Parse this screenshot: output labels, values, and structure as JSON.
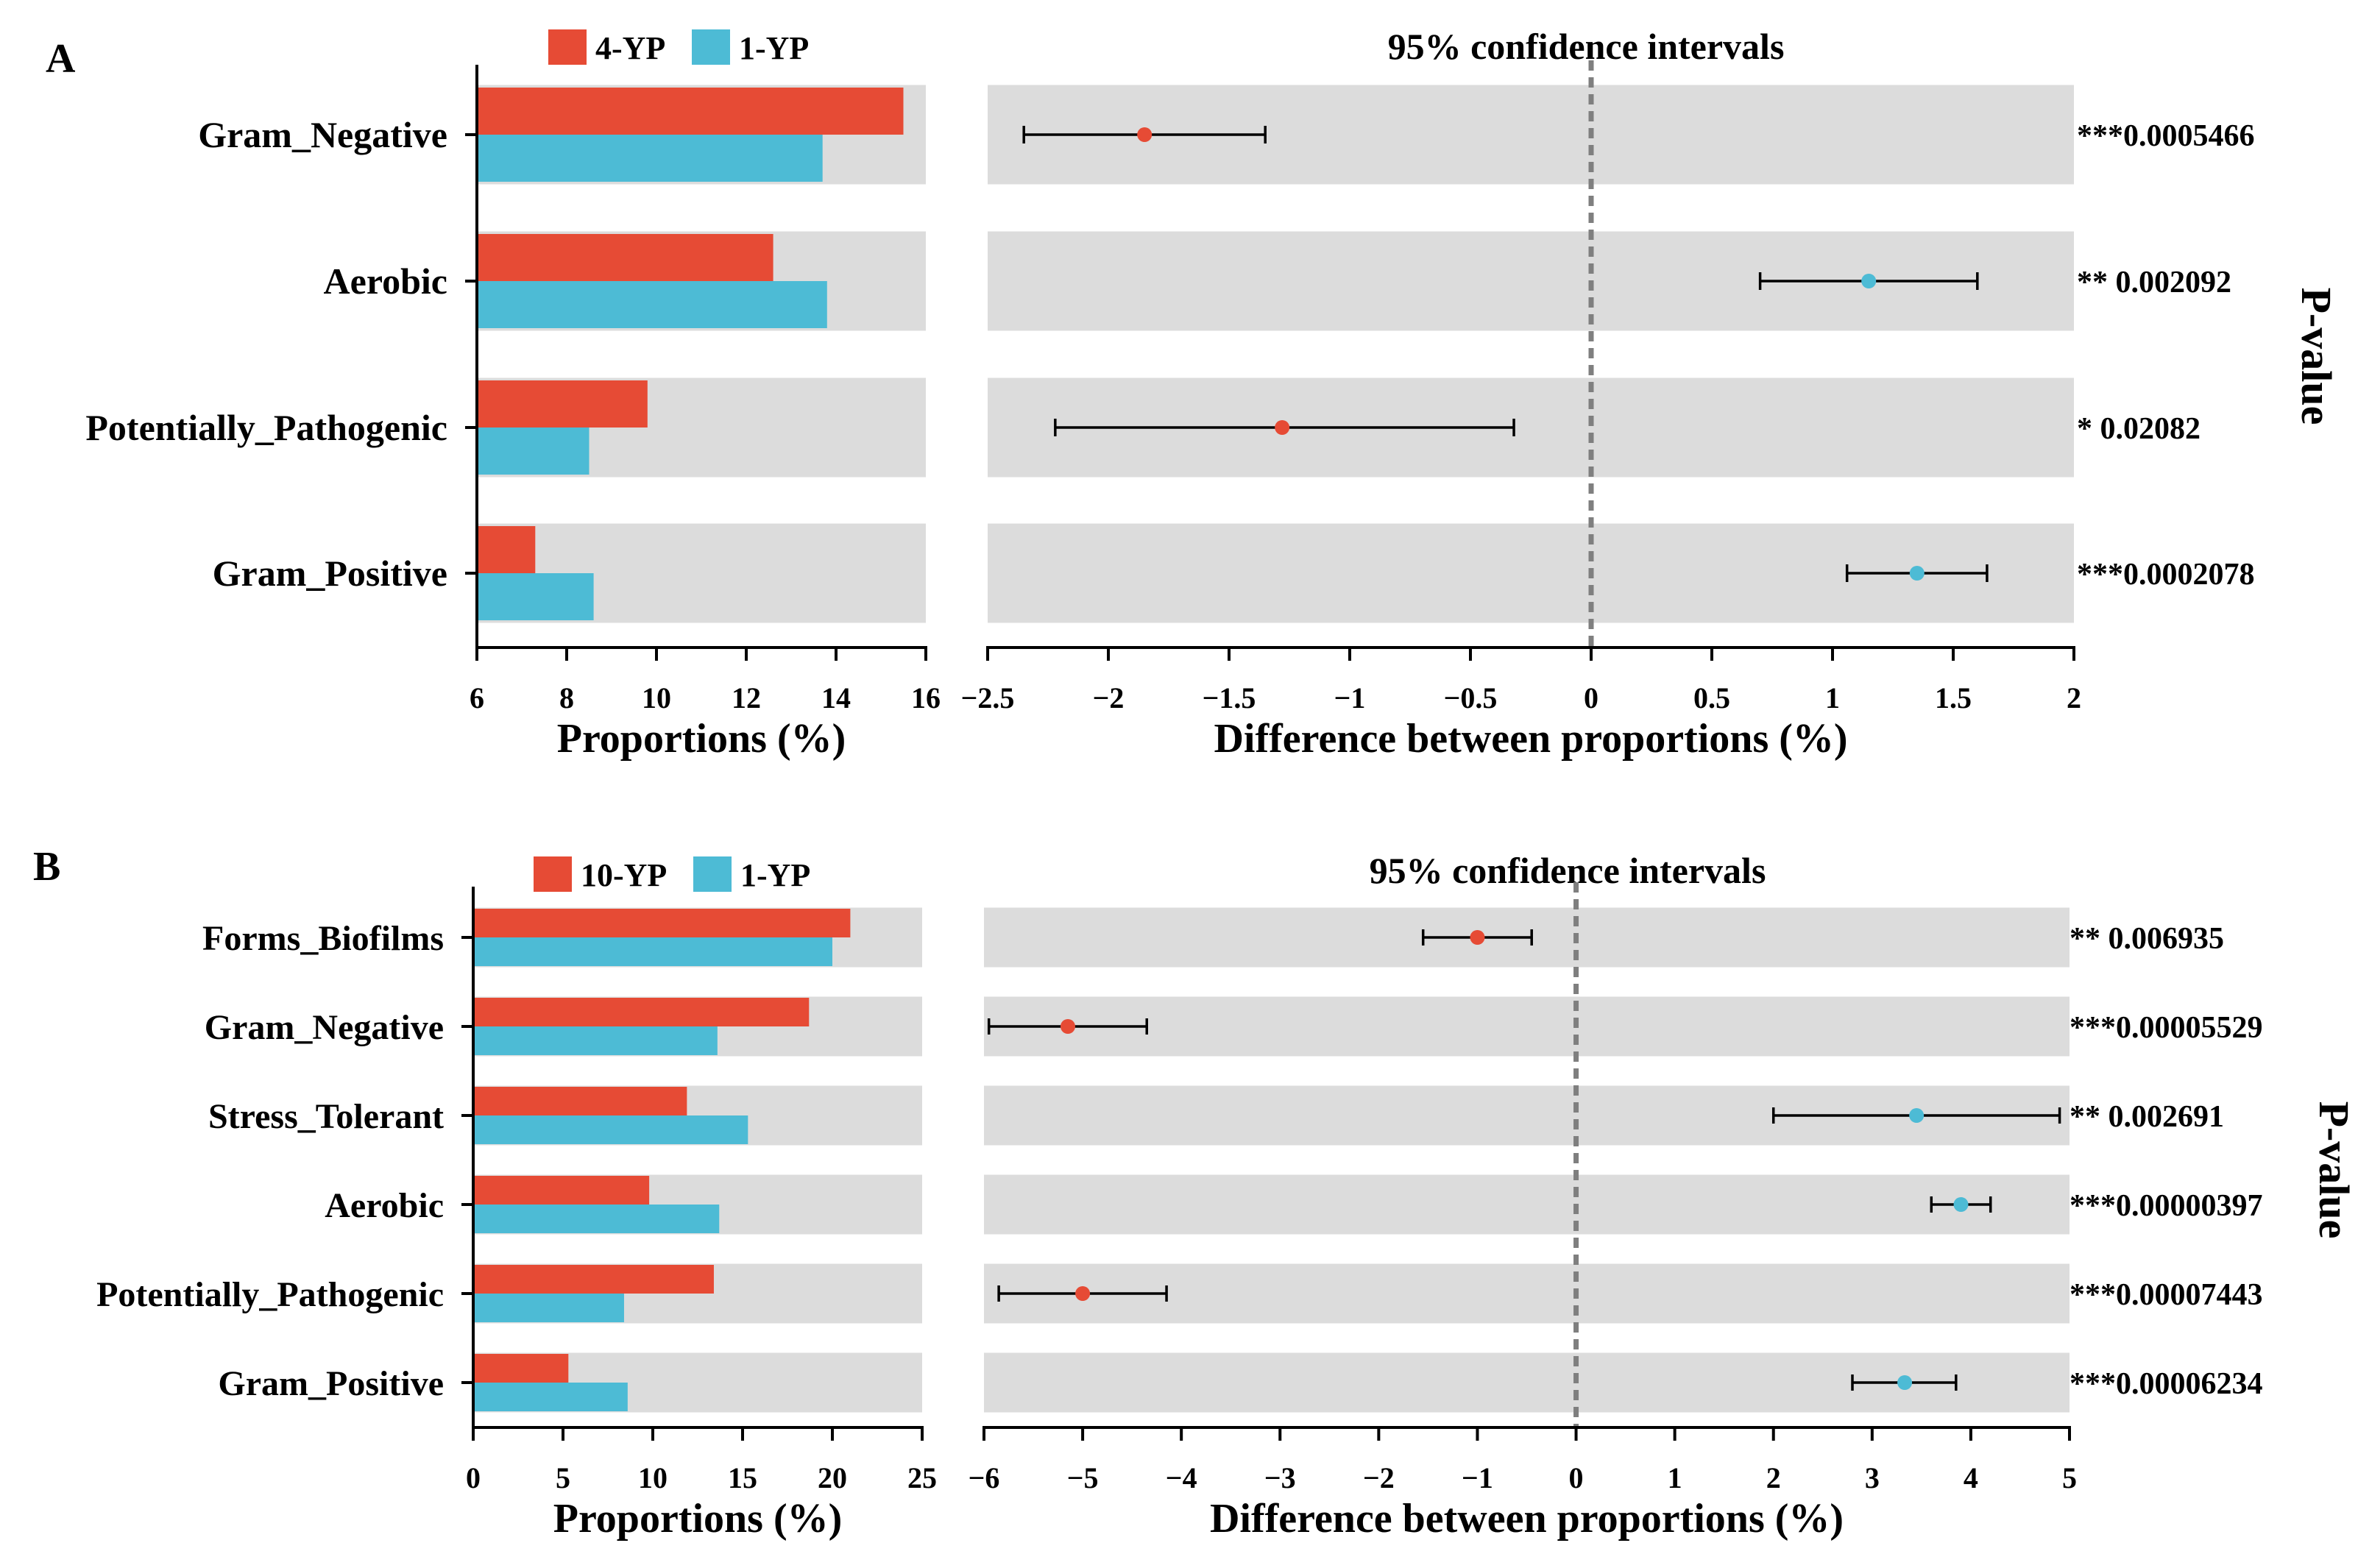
{
  "colors": {
    "group_a": "#e64b35",
    "group_b": "#4dbbd5",
    "panel_bg": "#dcdcdc",
    "zero_line": "#7f7f7f"
  },
  "chart_data": [
    {
      "panel_label": "A",
      "type": "bar",
      "legend": [
        "4-YP",
        "1-YP"
      ],
      "categories": [
        "Gram_Negative",
        "Aerobic",
        "Potentially_Pathogenic",
        "Gram_Positive"
      ],
      "series": [
        {
          "name": "4-YP",
          "values": [
            15.5,
            12.6,
            9.8,
            7.3
          ]
        },
        {
          "name": "1-YP",
          "values": [
            13.7,
            13.8,
            8.5,
            8.6
          ]
        }
      ],
      "bar_xlim": [
        6,
        16
      ],
      "bar_ticks": [
        "6",
        "8",
        "10",
        "12",
        "14",
        "16"
      ],
      "bar_xlabel": "Proportions (%)",
      "ci_title": "95% confidence intervals",
      "ci_xlim": [
        -2.5,
        2
      ],
      "ci_ticks": [
        "−2.5",
        "−2",
        "−1.5",
        "−1",
        "−0.5",
        "0",
        "0.5",
        "1",
        "1.5",
        "2"
      ],
      "ci_xlabel": "Difference between proportions (%)",
      "differences": [
        {
          "estimate": -1.85,
          "low": -2.35,
          "high": -1.35,
          "favors": "4-YP"
        },
        {
          "estimate": 1.15,
          "low": 0.7,
          "high": 1.6,
          "favors": "1-YP"
        },
        {
          "estimate": -1.28,
          "low": -2.22,
          "high": -0.32,
          "favors": "4-YP"
        },
        {
          "estimate": 1.35,
          "low": 1.06,
          "high": 1.64,
          "favors": "1-YP"
        }
      ],
      "pvalues": [
        "***0.0005466",
        "**  0.002092",
        "*   0.02082",
        "***0.0002078"
      ],
      "pvalue_title": "P-value"
    },
    {
      "panel_label": "B",
      "type": "bar",
      "legend": [
        "10-YP",
        "1-YP"
      ],
      "categories": [
        "Forms_Biofilms",
        "Gram_Negative",
        "Stress_Tolerant",
        "Aerobic",
        "Potentially_Pathogenic",
        "Gram_Positive"
      ],
      "series": [
        {
          "name": "10-YP",
          "values": [
            21.0,
            18.7,
            11.9,
            9.8,
            13.4,
            5.3
          ]
        },
        {
          "name": "1-YP",
          "values": [
            20.0,
            13.6,
            15.3,
            13.7,
            8.4,
            8.6
          ]
        }
      ],
      "bar_xlim": [
        0,
        25
      ],
      "bar_ticks": [
        "0",
        "5",
        "10",
        "15",
        "20",
        "25"
      ],
      "bar_xlabel": "Proportions (%)",
      "ci_title": "95% confidence intervals",
      "ci_xlim": [
        -6,
        5
      ],
      "ci_ticks": [
        "−6",
        "−5",
        "−4",
        "−3",
        "−2",
        "−1",
        "0",
        "1",
        "2",
        "3",
        "4",
        "5"
      ],
      "ci_xlabel": "Difference between proportions (%)",
      "differences": [
        {
          "estimate": -1.0,
          "low": -1.55,
          "high": -0.45,
          "favors": "10-YP"
        },
        {
          "estimate": -5.15,
          "low": -5.95,
          "high": -4.35,
          "favors": "10-YP"
        },
        {
          "estimate": 3.45,
          "low": 2.0,
          "high": 4.9,
          "favors": "1-YP"
        },
        {
          "estimate": 3.9,
          "low": 3.6,
          "high": 4.2,
          "favors": "1-YP"
        },
        {
          "estimate": -5.0,
          "low": -5.85,
          "high": -4.15,
          "favors": "10-YP"
        },
        {
          "estimate": 3.33,
          "low": 2.8,
          "high": 3.85,
          "favors": "1-YP"
        }
      ],
      "pvalues": [
        "**  0.006935",
        "***0.00005529",
        "**  0.002691",
        "***0.00000397",
        "***0.00007443",
        "***0.00006234"
      ],
      "pvalue_title": "P-value"
    }
  ]
}
